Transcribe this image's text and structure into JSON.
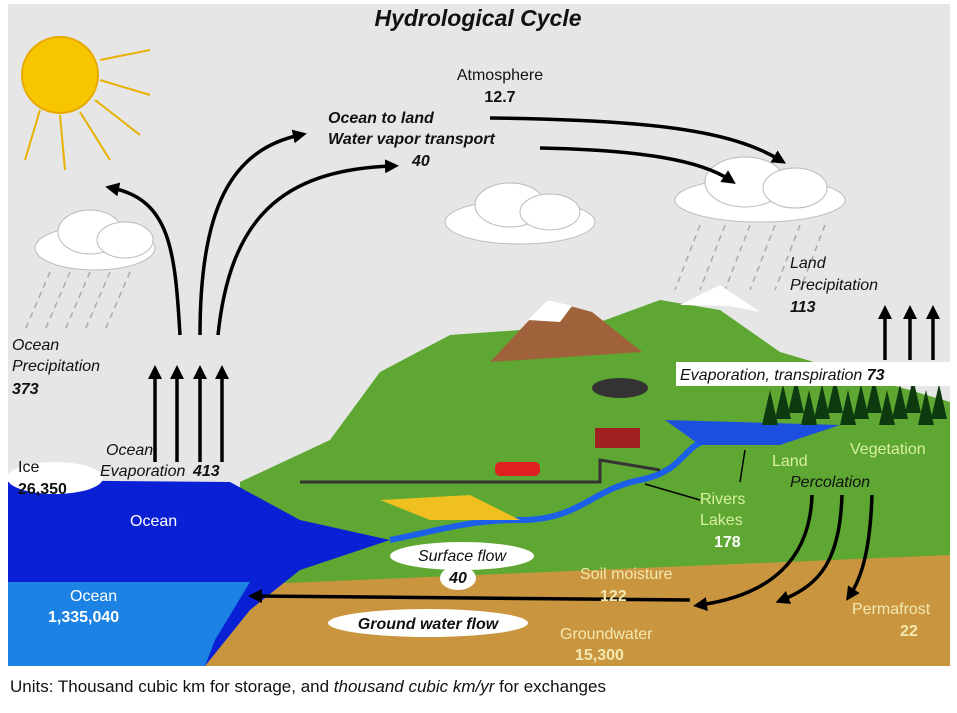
{
  "title": "Hydrological Cycle",
  "atmosphere": {
    "label": "Atmosphere",
    "value": "12.7"
  },
  "vapor_transport": {
    "line1": "Ocean to land",
    "line2": "Water vapor transport",
    "value": "40"
  },
  "land_precipitation": {
    "line1": "Land",
    "line2": "Precipitation",
    "value": "113"
  },
  "ocean_precipitation": {
    "line1": "Ocean",
    "line2": "Precipitation",
    "value": "373"
  },
  "ocean_evaporation": {
    "line1": "Ocean",
    "line2": "Evaporation",
    "value": "413"
  },
  "evapotranspiration": {
    "label": "Evaporation, transpiration",
    "value": "73"
  },
  "ice": {
    "label": "Ice",
    "value": "26,350"
  },
  "ocean_surface": {
    "label": "Ocean"
  },
  "vegetation": {
    "label": "Vegetation"
  },
  "percolation": {
    "line1": "Land",
    "line2": "Percolation"
  },
  "rivers_lakes": {
    "line1": "Rivers",
    "line2": "Lakes",
    "value": "178"
  },
  "surface_flow": {
    "label": "Surface flow",
    "value": "40"
  },
  "soil_moisture": {
    "label": "Soil moisture",
    "value": "122"
  },
  "ocean_storage": {
    "label": "Ocean",
    "value": "1,335,040"
  },
  "ground_water_flow": {
    "label": "Ground water flow"
  },
  "groundwater": {
    "label": "Groundwater",
    "value": "15,300"
  },
  "permafrost": {
    "label": "Permafrost",
    "value": "22"
  },
  "footer": {
    "part1": "Units: Thousand cubic km for storage, and ",
    "part2": "thousand cubic km/yr",
    "part3": " for exchanges"
  }
}
